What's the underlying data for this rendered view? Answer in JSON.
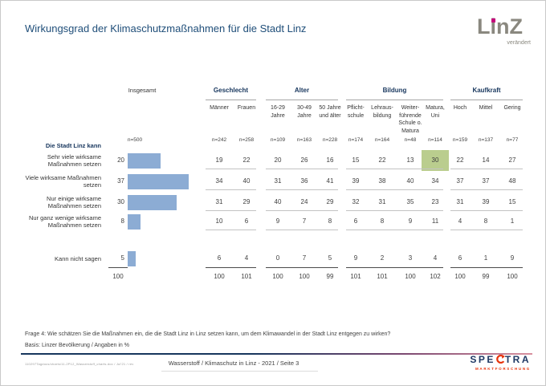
{
  "page": {
    "title": "Wirkungsgrad der Klimaschutzmaßnahmen für die Stadt Linz",
    "linz_logo": {
      "word": "LinZ",
      "sub": "verändert"
    },
    "spectra_logo": {
      "left": "SPE",
      "right": "TRA",
      "sub": "MARKTFORSCHUNG"
    },
    "footer": {
      "question": "Frage 4: Wie schätzen Sie die Maßnahmen ein, die die Stadt Linz in Linz setzen kann, um dem Klimawandel in der Stadt Linz entgegen zu wirken?",
      "basis": "Basis: Linzer Bevölkerung / Angaben in %",
      "doc_ref": "110297Tagdocs/charts/11-2P12_Wasserstoff_charts.doc / Jul'21 / rev",
      "center": "Wasserstoff / Klimaschutz in Linz - 2021  /  Seite 3"
    }
  },
  "chart_data": {
    "type": "bar",
    "title": "Wirkungsgrad der Klimaschutzmaßnahmen für die Stadt Linz",
    "unit": "%",
    "intro": "Die Stadt Linz kann",
    "bar_color": "#8cacd4",
    "highlight_color": "#bacd8e",
    "categories": [
      "Sehr viele wirksame Maßnahmen setzen",
      "Viele wirksame Maßnahmen setzen",
      "Nur einige wirksame Maßnahmen setzen",
      "Nur ganz wenige wirksame Maßnahmen setzen",
      "Kann nicht sagen"
    ],
    "insgesamt": {
      "label": "Insgesamt",
      "n": "n=500",
      "values": [
        20,
        37,
        30,
        8,
        5
      ],
      "total": "100"
    },
    "groups": [
      {
        "label": "Geschlecht",
        "columns": [
          {
            "label": "Männer",
            "lines": [
              "Männer"
            ],
            "n": "n=242",
            "values": [
              19,
              34,
              31,
              10,
              6
            ],
            "total": "100"
          },
          {
            "label": "Frauen",
            "lines": [
              "Frauen"
            ],
            "n": "n=258",
            "values": [
              22,
              40,
              29,
              6,
              4
            ],
            "total": "101"
          }
        ]
      },
      {
        "label": "Alter",
        "columns": [
          {
            "label": "16-29 Jahre",
            "lines": [
              "16-29",
              "Jahre"
            ],
            "n": "n=109",
            "values": [
              20,
              31,
              40,
              9,
              0
            ],
            "total": "100"
          },
          {
            "label": "30-49 Jahre",
            "lines": [
              "30-49",
              "Jahre"
            ],
            "n": "n=163",
            "values": [
              26,
              36,
              24,
              7,
              7
            ],
            "total": "100"
          },
          {
            "label": "50 Jahre und älter",
            "lines": [
              "50 Jahre",
              "und älter"
            ],
            "n": "n=228",
            "values": [
              16,
              41,
              29,
              8,
              5
            ],
            "total": "99"
          }
        ]
      },
      {
        "label": "Bildung",
        "columns": [
          {
            "label": "Pflichtschule",
            "lines": [
              "Pflicht-",
              "schule"
            ],
            "n": "n=174",
            "values": [
              15,
              39,
              32,
              6,
              9
            ],
            "total": "101"
          },
          {
            "label": "Lehrausbildung",
            "lines": [
              "Lehraus-",
              "bildung"
            ],
            "n": "n=164",
            "values": [
              22,
              38,
              31,
              8,
              2
            ],
            "total": "101"
          },
          {
            "label": "Weiterführende Schule o. Matura",
            "lines": [
              "Weiter-",
              "führende",
              "Schule o.",
              "Matura"
            ],
            "n": "n=48",
            "values": [
              13,
              40,
              35,
              9,
              3
            ],
            "total": "100"
          },
          {
            "label": "Matura, Uni",
            "lines": [
              "Matura,",
              "Uni"
            ],
            "n": "n=114",
            "values": [
              30,
              34,
              23,
              11,
              4
            ],
            "total": "102"
          }
        ]
      },
      {
        "label": "Kaufkraft",
        "columns": [
          {
            "label": "Hoch",
            "lines": [
              "Hoch"
            ],
            "n": "n=159",
            "values": [
              22,
              37,
              31,
              4,
              6
            ],
            "total": "100"
          },
          {
            "label": "Mittel",
            "lines": [
              "Mittel"
            ],
            "n": "n=137",
            "values": [
              14,
              37,
              39,
              8,
              1
            ],
            "total": "99"
          },
          {
            "label": "Gering",
            "lines": [
              "Gering"
            ],
            "n": "n=77",
            "values": [
              27,
              48,
              15,
              1,
              9
            ],
            "total": "100"
          }
        ]
      }
    ],
    "highlight": {
      "group_index": 2,
      "col_index": 3,
      "row_index": 0,
      "value": 30
    }
  }
}
